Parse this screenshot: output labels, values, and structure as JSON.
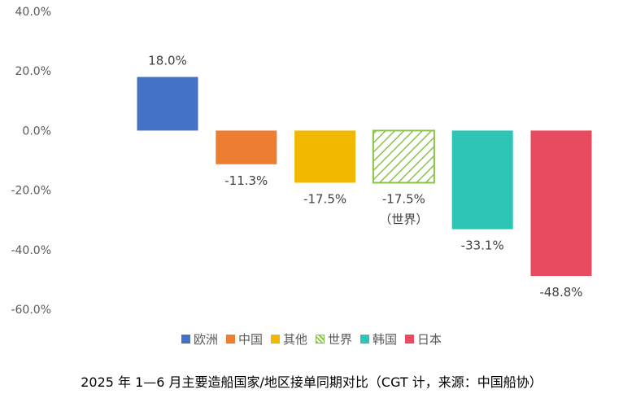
{
  "chart_data": {
    "type": "bar",
    "categories": [
      "欧洲",
      "中国",
      "其他",
      "世界",
      "韩国",
      "日本"
    ],
    "values": [
      18.0,
      -11.3,
      -17.5,
      -17.5,
      -33.1,
      -48.8
    ],
    "data_labels": [
      "18.0%",
      "-11.3%",
      "-17.5%",
      "-17.5%",
      "-33.1%",
      "-48.8%"
    ],
    "world_label_note": "（世界）",
    "colors": [
      "#4472C4",
      "#ED7D31",
      "#F2B800",
      "#8BC34A",
      "#2EC4B6",
      "#E84A5F"
    ],
    "hatched": [
      false,
      false,
      false,
      true,
      false,
      false
    ],
    "ylim": [
      -60,
      40
    ],
    "yticks": [
      40,
      20,
      0,
      -20,
      -40,
      -60
    ],
    "ytick_labels": [
      "40.0%",
      "20.0%",
      "0.0%",
      "-20.0%",
      "-40.0%",
      "-60.0%"
    ],
    "grid": false,
    "legend_position": "bottom",
    "title": "2025 年 1—6 月主要造船国家/地区接单同期对比（CGT 计，来源：中国船协）"
  }
}
